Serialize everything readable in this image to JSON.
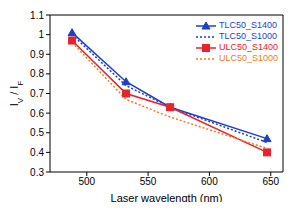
{
  "chart_data": {
    "type": "line",
    "x_label": "Laser wavelength (nm)",
    "y_label": "IV / IF",
    "x": [
      488,
      532,
      568,
      647
    ],
    "xlim": [
      470,
      660
    ],
    "xticks": [
      500,
      550,
      600,
      650
    ],
    "ylim": [
      0.3,
      1.1
    ],
    "yticks": [
      0.3,
      0.4,
      0.5,
      0.6,
      0.7,
      0.8,
      0.9,
      1,
      1.1
    ],
    "grid": false,
    "legend": "upper right",
    "series": [
      {
        "name": "TLC50_S1400",
        "color": "#1f3fc8",
        "marker": "triangle",
        "line_style": "solid",
        "values": [
          1.01,
          0.76,
          0.63,
          0.47
        ]
      },
      {
        "name": "TLC50_S1000",
        "color": "#1f3fc8",
        "marker": "none",
        "line_style": "dotted",
        "values": [
          1.0,
          0.74,
          0.63,
          0.45
        ]
      },
      {
        "name": "ULC50_S1400",
        "color": "#e8222a",
        "marker": "square",
        "line_style": "solid",
        "values": [
          0.97,
          0.7,
          0.63,
          0.4
        ]
      },
      {
        "name": "ULC50_S1000",
        "color": "#e8801e",
        "marker": "none",
        "line_style": "dotted",
        "values": [
          0.96,
          0.67,
          0.58,
          0.42
        ]
      }
    ]
  }
}
